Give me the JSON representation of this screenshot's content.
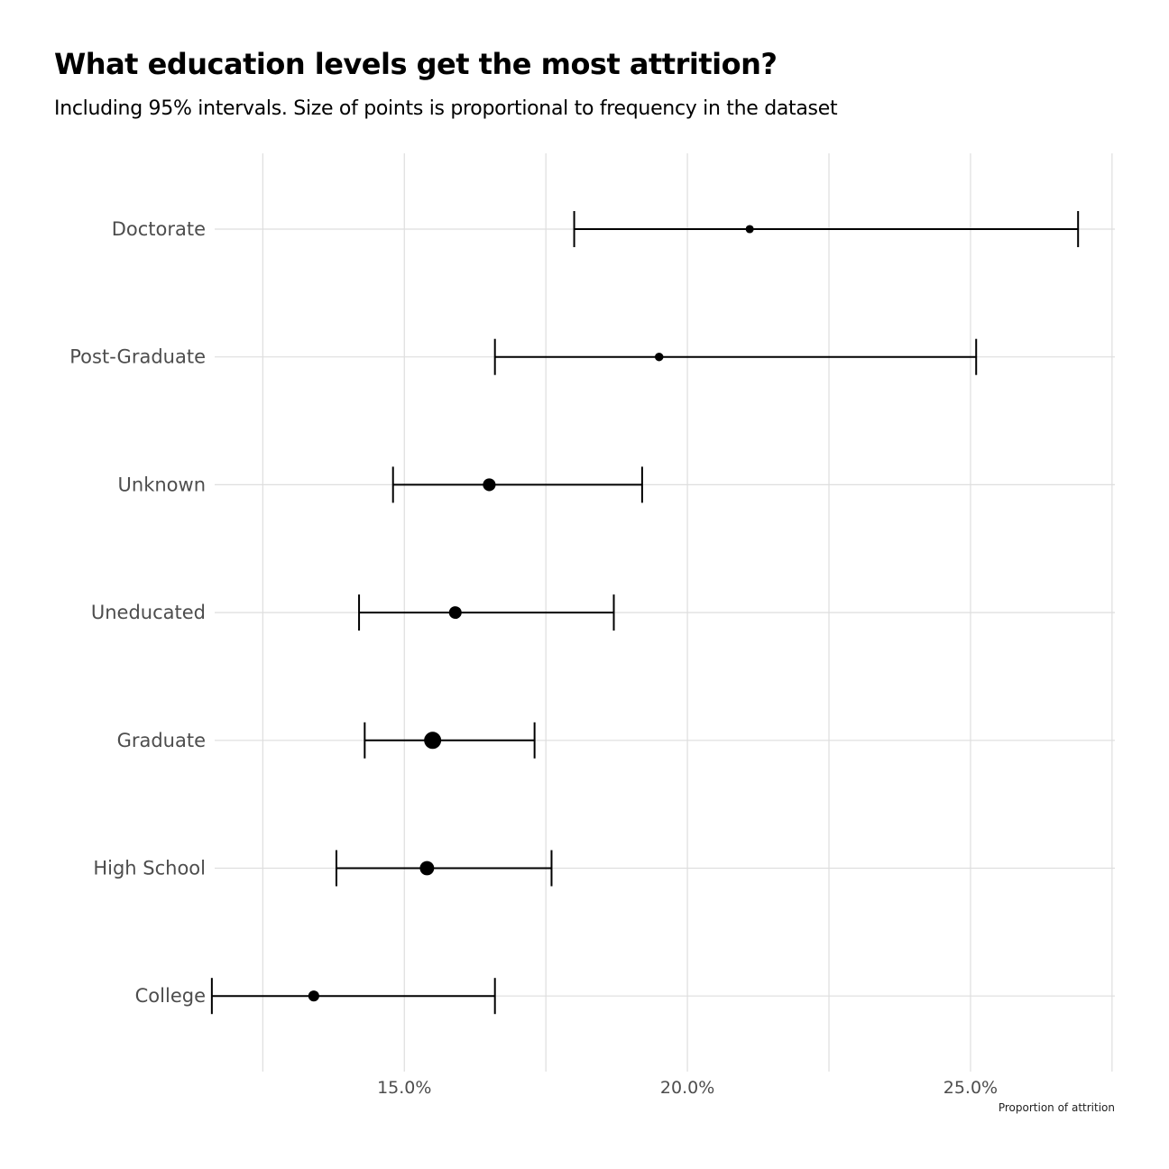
{
  "chart_data": {
    "type": "dot-errorbar",
    "title": "What education levels get the most attrition?",
    "subtitle": "Including 95% intervals. Size of points is proportional to frequency in the dataset",
    "xlabel": "Proportion of attrition",
    "ylabel": "",
    "xlim": [
      0.1165,
      0.2755
    ],
    "x_ticks": [
      0.15,
      0.2,
      0.25
    ],
    "x_tick_labels": [
      "15.0%",
      "20.0%",
      "25.0%"
    ],
    "x_minor_ticks": [
      0.125,
      0.175,
      0.225,
      0.275
    ],
    "grid": true,
    "categories": [
      "Doctorate",
      "Post-Graduate",
      "Unknown",
      "Uneducated",
      "Graduate",
      "High School",
      "College"
    ],
    "estimate": [
      0.211,
      0.195,
      0.165,
      0.159,
      0.155,
      0.154,
      0.134
    ],
    "lower": [
      0.18,
      0.166,
      0.148,
      0.142,
      0.143,
      0.138,
      0.116
    ],
    "upper": [
      0.269,
      0.251,
      0.192,
      0.187,
      0.173,
      0.176,
      0.166
    ],
    "frequency": [
      451,
      516,
      1519,
      1487,
      3128,
      2013,
      1013
    ],
    "colors": {
      "points": "#000000",
      "grid": "#dedede",
      "labels": "#4d4d4d"
    }
  }
}
